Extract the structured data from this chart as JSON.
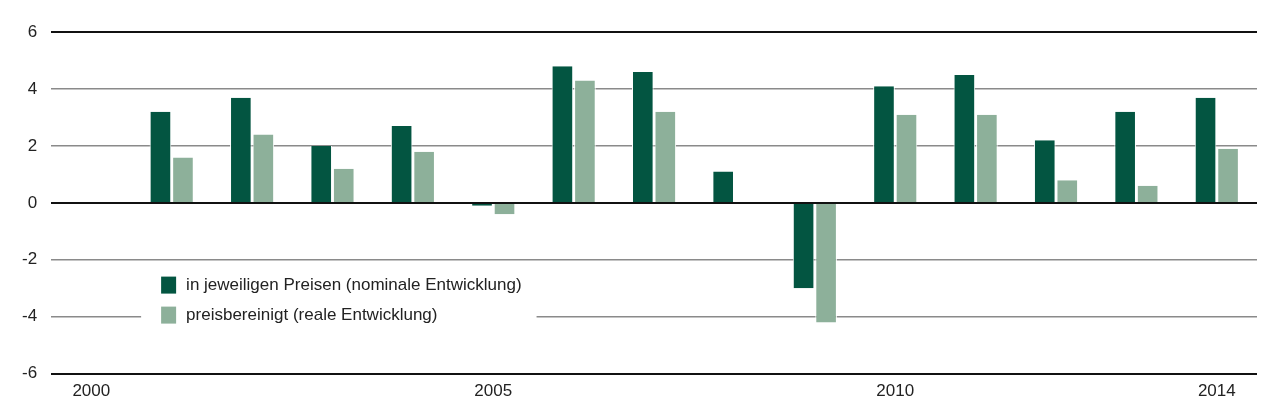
{
  "chart_data": {
    "type": "bar",
    "categories": [
      "2000",
      null,
      null,
      null,
      null,
      "2005",
      null,
      null,
      null,
      null,
      "2010",
      null,
      null,
      null,
      "2014"
    ],
    "series": [
      {
        "name": "in jeweiligen Preisen (nominale Entwicklung)",
        "color": "#035541",
        "values": [
          null,
          3.2,
          3.7,
          2.0,
          2.7,
          -0.1,
          4.8,
          4.6,
          1.1,
          -3.0,
          4.1,
          4.5,
          2.2,
          3.2,
          3.7
        ]
      },
      {
        "name": "preisbereinigt (reale Entwicklung)",
        "color": "#8db09a",
        "values": [
          null,
          1.6,
          2.4,
          1.2,
          1.8,
          -0.4,
          4.3,
          3.2,
          null,
          -4.2,
          3.1,
          3.1,
          0.8,
          0.6,
          1.9
        ]
      }
    ],
    "ylim": [
      -6,
      6
    ],
    "yticks": [
      -6,
      -4,
      -2,
      0,
      2,
      4,
      6
    ],
    "grid": "y",
    "legend": "bottom left"
  }
}
